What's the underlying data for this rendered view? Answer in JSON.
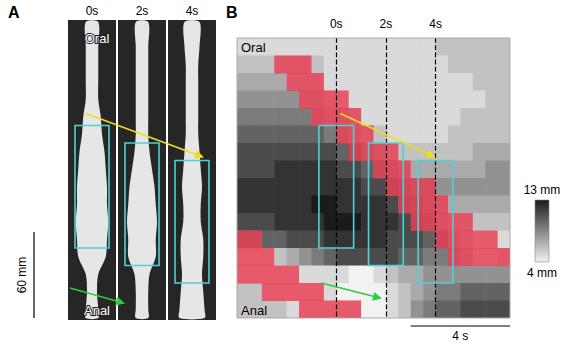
{
  "panel_a": {
    "label": "A",
    "times": [
      "0s",
      "2s",
      "4s"
    ],
    "oral_label": "Oral",
    "anal_label": "Anal",
    "scale_bar": {
      "value": 60,
      "label": "60 mm"
    }
  },
  "chart_data": {
    "type": "heatmap",
    "label": "B",
    "x": [
      -4,
      -3.5,
      -3,
      -2.5,
      -2,
      -1.5,
      -1,
      -0.5,
      0,
      0.5,
      1,
      1.5,
      2,
      2.5,
      3,
      3.5,
      4,
      4.5,
      5,
      5.5,
      6,
      6.5
    ],
    "xlim": [
      -4,
      7
    ],
    "ylim": [
      0,
      16
    ],
    "time_markers": [
      {
        "value": 0,
        "label": "0s"
      },
      {
        "value": 2,
        "label": "2s"
      },
      {
        "value": 4,
        "label": "4s"
      }
    ],
    "position_labels": [
      "Oral",
      "Anal"
    ],
    "diameter_mm": [
      [
        5,
        5,
        5,
        5,
        5,
        5,
        5,
        5,
        5,
        5,
        5,
        5,
        5,
        5,
        5,
        5,
        6,
        6,
        6,
        6,
        6,
        6
      ],
      [
        6,
        6,
        6,
        6,
        6,
        6,
        6,
        5,
        5,
        5,
        5,
        5,
        5,
        5,
        5,
        5,
        5,
        6,
        6,
        6,
        6,
        6
      ],
      [
        7,
        7,
        7,
        7,
        6,
        6,
        6,
        5,
        5,
        5,
        5,
        5,
        5,
        5,
        5,
        5,
        5,
        5,
        5,
        6,
        6,
        6
      ],
      [
        8,
        8,
        8,
        8,
        8,
        7,
        7,
        6,
        5,
        5,
        5,
        5,
        5,
        5,
        5,
        5,
        5,
        5,
        5,
        5,
        6,
        6
      ],
      [
        9,
        9,
        9,
        9,
        9,
        9,
        8,
        7,
        7,
        6,
        5,
        5,
        5,
        5,
        5,
        5,
        5,
        5,
        6,
        6,
        6,
        6
      ],
      [
        10,
        10,
        10,
        10,
        10,
        10,
        10,
        9,
        8,
        7,
        6,
        6,
        5,
        5,
        5,
        5,
        5,
        6,
        6,
        6,
        6,
        6
      ],
      [
        11,
        11,
        11,
        11,
        11,
        11,
        11,
        11,
        10,
        10,
        8,
        7,
        6,
        6,
        6,
        6,
        6,
        6,
        6,
        7,
        7,
        7
      ],
      [
        11,
        11,
        11,
        12,
        12,
        12,
        12,
        12,
        11,
        11,
        10,
        9,
        8,
        7,
        7,
        7,
        7,
        7,
        7,
        7,
        8,
        8
      ],
      [
        12,
        12,
        12,
        12,
        12,
        12,
        12,
        12,
        12,
        12,
        11,
        11,
        10,
        9,
        8,
        8,
        8,
        8,
        8,
        8,
        8,
        8
      ],
      [
        12,
        12,
        12,
        12,
        12,
        12,
        13,
        13,
        12,
        12,
        12,
        12,
        11,
        10,
        9,
        8,
        7,
        7,
        7,
        7,
        7,
        7
      ],
      [
        11,
        11,
        11,
        12,
        12,
        12,
        12,
        13,
        13,
        13,
        12,
        12,
        12,
        11,
        10,
        9,
        7,
        6,
        6,
        6,
        6,
        6
      ],
      [
        9,
        9,
        10,
        10,
        11,
        11,
        11,
        12,
        12,
        12,
        12,
        12,
        11,
        11,
        11,
        10,
        9,
        7,
        6,
        5,
        5,
        5
      ],
      [
        5,
        5,
        5,
        6,
        7,
        8,
        9,
        10,
        11,
        11,
        11,
        11,
        11,
        10,
        10,
        9,
        9,
        8,
        7,
        5,
        5,
        6
      ],
      [
        5,
        5,
        5,
        5,
        5,
        5,
        5,
        5,
        5,
        4,
        4,
        5,
        6,
        7,
        7,
        8,
        8,
        8,
        8,
        8,
        8,
        8
      ],
      [
        6,
        6,
        5,
        5,
        5,
        5,
        5,
        5,
        4,
        4,
        4,
        4,
        5,
        6,
        7,
        8,
        9,
        9,
        10,
        10,
        10,
        10
      ],
      [
        6,
        6,
        6,
        6,
        5,
        5,
        5,
        5,
        5,
        5,
        4,
        4,
        5,
        6,
        8,
        9,
        10,
        10,
        11,
        11,
        11,
        11
      ]
    ],
    "contraction_cells": [
      [
        1,
        -2.5,
        -1
      ],
      [
        2,
        -2,
        -0.5
      ],
      [
        3,
        -1.5,
        0.5
      ],
      [
        4,
        -1,
        1
      ],
      [
        5,
        0,
        1.5
      ],
      [
        6,
        0.5,
        2.5
      ],
      [
        7,
        1.5,
        3
      ],
      [
        8,
        2,
        4
      ],
      [
        9,
        2.5,
        4.5
      ],
      [
        10,
        3,
        5.5
      ],
      [
        11,
        4,
        6.5
      ],
      [
        12,
        4.5,
        7
      ],
      [
        11,
        -4,
        -3
      ],
      [
        12,
        -4,
        -2.5
      ],
      [
        13,
        -4,
        -1.5
      ],
      [
        14,
        -3,
        -0.5
      ],
      [
        15,
        -1.5,
        1
      ]
    ],
    "segment_boxes": [
      {
        "t": [
          -0.7,
          0.7
        ],
        "rows": [
          5,
          12
        ]
      },
      {
        "t": [
          1.3,
          2.7
        ],
        "rows": [
          6,
          13
        ]
      },
      {
        "t": [
          3.3,
          4.7
        ],
        "rows": [
          7,
          14
        ]
      }
    ],
    "colorbar": {
      "range": [
        4,
        13
      ],
      "ticks": [
        {
          "value": 13,
          "label": "13 mm"
        },
        {
          "value": 4,
          "label": "4 mm"
        }
      ]
    },
    "scale_bar": {
      "value": 4,
      "label": "4 s"
    }
  }
}
